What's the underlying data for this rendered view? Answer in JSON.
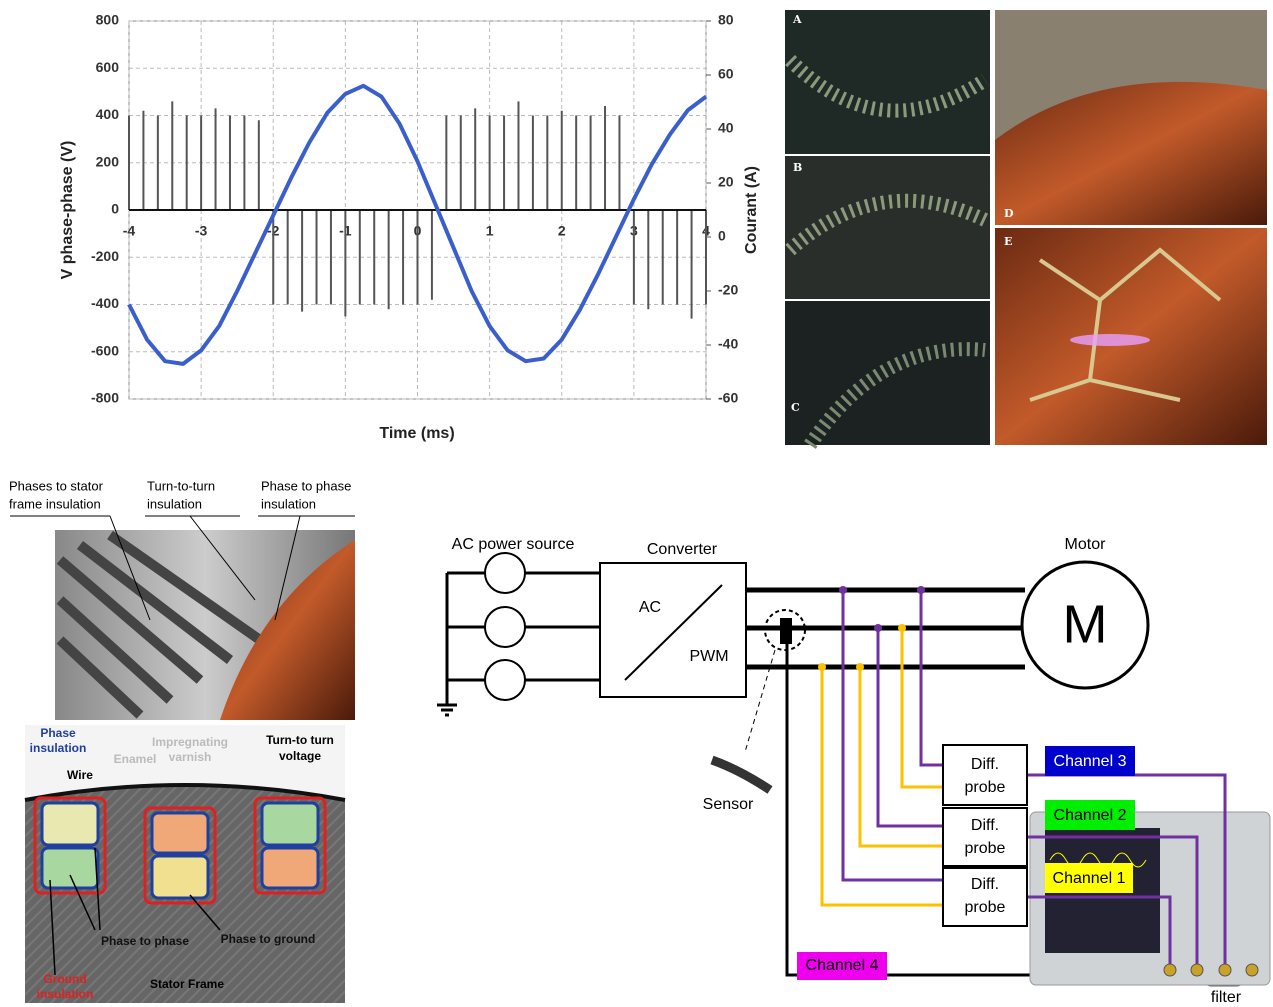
{
  "chart_data": {
    "type": "line",
    "x_label": "Time (ms)",
    "y_label": "V phase-phase (V)",
    "y2_label": "Courant (A)",
    "series": [
      {
        "color": "#555555",
        "style": "stems",
        "x": [
          -4,
          -3.8,
          -3.6,
          -3.4,
          -3.2,
          -3,
          -2.8,
          -2.6,
          -2.4,
          -2.2,
          -2,
          -1.8,
          -1.6,
          -1.4,
          -1.2,
          -1,
          -0.8,
          -0.6,
          -0.4,
          -0.2,
          0,
          0.2,
          0.4,
          0.6,
          0.8,
          1,
          1.2,
          1.4,
          1.6,
          1.8,
          2,
          2.2,
          2.4,
          2.6,
          2.8,
          3,
          3.2,
          3.4,
          3.6,
          3.8,
          4
        ],
        "values": [
          400,
          420,
          400,
          460,
          400,
          400,
          430,
          400,
          400,
          380,
          -400,
          -400,
          -430,
          -400,
          -400,
          -450,
          -400,
          -400,
          -420,
          -400,
          -400,
          -380,
          400,
          400,
          430,
          400,
          400,
          460,
          400,
          400,
          420,
          400,
          400,
          440,
          400,
          -400,
          -420,
          -400,
          -400,
          -460,
          -400
        ]
      },
      {
        "color": "#3a5fcd",
        "axis": "y2",
        "style": "line",
        "x": [
          -4,
          -3.75,
          -3.5,
          -3.25,
          -3,
          -2.75,
          -2.5,
          -2.25,
          -2,
          -1.75,
          -1.5,
          -1.25,
          -1,
          -0.75,
          -0.5,
          -0.25,
          0,
          0.25,
          0.5,
          0.75,
          1,
          1.25,
          1.5,
          1.75,
          2,
          2.25,
          2.5,
          2.75,
          3,
          3.25,
          3.5,
          3.75,
          4
        ],
        "values": [
          -25,
          -38,
          -46,
          -47,
          -42,
          -33,
          -20,
          -6,
          8,
          22,
          35,
          46,
          53,
          56,
          52,
          42,
          28,
          12,
          -4,
          -20,
          -33,
          -42,
          -46,
          -45,
          -38,
          -27,
          -14,
          0,
          14,
          27,
          38,
          47,
          52
        ]
      }
    ],
    "xlim": [
      -4,
      4
    ],
    "xticks": [
      -4,
      -3,
      -2,
      -1,
      0,
      1,
      2,
      3,
      4
    ],
    "ylim": [
      -800,
      800
    ],
    "yticks": [
      -800,
      -600,
      -400,
      -200,
      0,
      200,
      400,
      600,
      800
    ],
    "y2lim": [
      -60,
      80
    ],
    "y2ticks": [
      -60,
      -40,
      -20,
      0,
      20,
      40,
      60,
      80
    ],
    "grid": true
  },
  "photos": {
    "labels": [
      "A",
      "B",
      "C",
      "D",
      "E"
    ]
  },
  "insulation_photo": {
    "labels": [
      {
        "lines": [
          "Phases to stator",
          "frame insulation"
        ]
      },
      {
        "lines": [
          "Turn-to-turn",
          "insulation"
        ]
      },
      {
        "lines": [
          "Phase to phase",
          "insulation"
        ]
      }
    ]
  },
  "slot_diagram": {
    "labels": {
      "phase_insulation": [
        "Phase",
        "insulation"
      ],
      "wire": "Wire",
      "enamel": "Enamel",
      "varnish": [
        "Impregnating",
        "varnish"
      ],
      "turn_voltage": [
        "Turn-to turn",
        "voltage"
      ],
      "phase_to_phase": "Phase to phase",
      "phase_to_ground": "Phase to ground",
      "ground_insulation": [
        "Ground",
        "insulation"
      ],
      "stator_frame": "Stator Frame"
    }
  },
  "circuit": {
    "source": "AC power source",
    "converter": "Converter",
    "ac": "AC",
    "pwm": "PWM",
    "motor": "Motor",
    "motor_symbol": "M",
    "sensor": "Sensor",
    "probes": [
      [
        "Diff.",
        "probe"
      ],
      [
        "Diff.",
        "probe"
      ],
      [
        "Diff.",
        "probe"
      ]
    ],
    "channels": [
      "Channel 1",
      "Channel 2",
      "Channel 3",
      "Channel 4"
    ],
    "filter": "filter"
  }
}
